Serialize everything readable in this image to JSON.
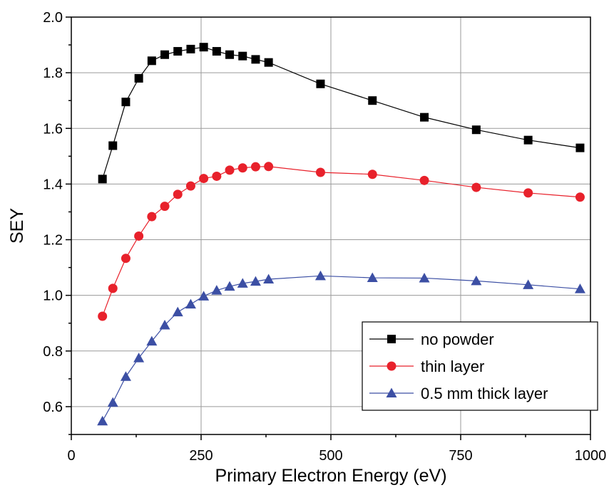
{
  "chart_data": {
    "type": "line",
    "xlabel": "Primary Electron Energy (eV)",
    "ylabel": "SEY",
    "xlim": [
      0,
      1000
    ],
    "ylim": [
      0.5,
      2.0
    ],
    "xticks": [
      0,
      250,
      500,
      750,
      1000
    ],
    "yticks": [
      0.6,
      0.8,
      1.0,
      1.2,
      1.4,
      1.6,
      1.8,
      2.0
    ],
    "xtick_labels": [
      "0",
      "250",
      "500",
      "750",
      "1000"
    ],
    "ytick_labels": [
      "0.6",
      "0.8",
      "1.0",
      "1.2",
      "1.4",
      "1.6",
      "1.8",
      "2.0"
    ],
    "grid": true,
    "legend_position": "bottom-right",
    "series": [
      {
        "name": "no powder",
        "marker": "square",
        "color": "#000000",
        "x": [
          60,
          80,
          105,
          130,
          155,
          180,
          205,
          230,
          255,
          280,
          305,
          330,
          355,
          380,
          480,
          580,
          680,
          780,
          880,
          980
        ],
        "y": [
          1.418,
          1.538,
          1.695,
          1.78,
          1.843,
          1.865,
          1.877,
          1.885,
          1.892,
          1.877,
          1.865,
          1.86,
          1.848,
          1.837,
          1.76,
          1.7,
          1.64,
          1.595,
          1.558,
          1.53
        ]
      },
      {
        "name": "thin layer",
        "marker": "circle",
        "color": "#e8212b",
        "x": [
          60,
          80,
          105,
          130,
          155,
          180,
          205,
          230,
          255,
          280,
          305,
          330,
          355,
          380,
          480,
          580,
          680,
          780,
          880,
          980
        ],
        "y": [
          0.925,
          1.025,
          1.133,
          1.213,
          1.283,
          1.32,
          1.363,
          1.393,
          1.42,
          1.428,
          1.45,
          1.458,
          1.462,
          1.463,
          1.442,
          1.435,
          1.413,
          1.388,
          1.368,
          1.353
        ]
      },
      {
        "name": "0.5 mm thick layer",
        "marker": "triangle",
        "color": "#3c4fa4",
        "x": [
          60,
          80,
          105,
          130,
          155,
          180,
          205,
          230,
          255,
          280,
          305,
          330,
          355,
          380,
          480,
          580,
          680,
          780,
          880,
          980
        ],
        "y": [
          0.548,
          0.615,
          0.708,
          0.775,
          0.835,
          0.893,
          0.94,
          0.968,
          0.997,
          1.018,
          1.032,
          1.043,
          1.05,
          1.058,
          1.07,
          1.063,
          1.062,
          1.052,
          1.038,
          1.023
        ]
      }
    ]
  }
}
